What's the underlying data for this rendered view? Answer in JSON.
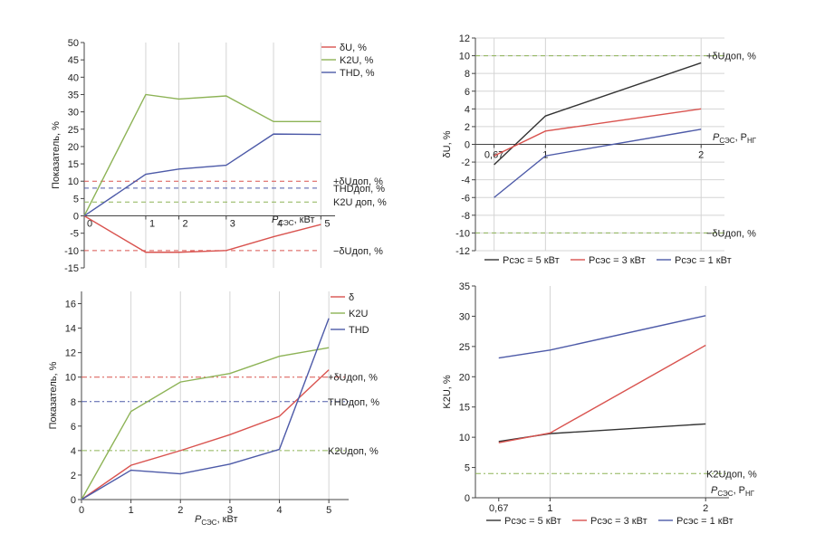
{
  "chart_data": [
    {
      "type": "line",
      "ylabel": "Показатель, %",
      "xlabel_main": "P",
      "xlabel_sub": "СЭС",
      "xlabel_tail": ", кВт",
      "x": [
        0,
        1.3,
        2,
        3,
        4,
        5
      ],
      "xticks": [
        "0",
        "1",
        "2",
        "3",
        "4",
        "5"
      ],
      "ylim": [
        -15,
        50
      ],
      "yticks": [
        "-15",
        "-10",
        "-5",
        "0",
        "5",
        "10",
        "15",
        "20",
        "25",
        "30",
        "35",
        "40",
        "45",
        "50"
      ],
      "grid": "vertical",
      "legend": "top-right",
      "series": [
        {
          "name": "δU, %",
          "color": "#d9534f",
          "values": [
            0,
            -10.5,
            -10.5,
            -10,
            -6,
            -2.5
          ]
        },
        {
          "name": "K2U, %",
          "color": "#8db356",
          "values": [
            0,
            35,
            33.7,
            34.6,
            27.2,
            27.2
          ]
        },
        {
          "name": "THD, %",
          "color": "#4d5aa8",
          "values": [
            0,
            12,
            13.5,
            14.6,
            23.6,
            23.5
          ]
        }
      ],
      "reference_lines": [
        {
          "label": "+δUдоп, %",
          "value": 10,
          "color": "#d9534f"
        },
        {
          "label": "THDдоп, %",
          "value": 8,
          "color": "#4d5aa8"
        },
        {
          "label": "K2U доп, %",
          "value": 4,
          "color": "#8db356"
        },
        {
          "label": "−δUдоп, %",
          "value": -10,
          "color": "#d9534f"
        }
      ]
    },
    {
      "type": "line",
      "ylabel": "δU, %",
      "xlabel_main": "P",
      "xlabel_sub": "СЭС",
      "xlabel_tail": ", P",
      "xlabel_sub2": "НГ",
      "x": [
        0.67,
        1,
        2
      ],
      "xticks": [
        "0,67",
        "1",
        "2"
      ],
      "ylim": [
        -12,
        12
      ],
      "yticks": [
        "-12",
        "-10",
        "-8",
        "-6",
        "-4",
        "-2",
        "0",
        "2",
        "4",
        "6",
        "8",
        "10",
        "12"
      ],
      "grid": "horizontal",
      "legend": "bottom",
      "series": [
        {
          "name": "Pсэс = 5 кВт",
          "color": "#333333",
          "values": [
            -2.3,
            3.2,
            9.2
          ]
        },
        {
          "name": "Pсэс = 3 кВт",
          "color": "#d9534f",
          "values": [
            -1.3,
            1.5,
            4.0
          ]
        },
        {
          "name": "Pсэс = 1 кВт",
          "color": "#4d5aa8",
          "values": [
            -6.0,
            -1.3,
            1.7
          ]
        }
      ],
      "reference_lines": [
        {
          "label": "+δUдоп, %",
          "value": 10,
          "color": "#8db356"
        },
        {
          "label": "−δUдоп, %",
          "value": -10,
          "color": "#8db356"
        }
      ]
    },
    {
      "type": "line",
      "ylabel": "Показатель, %",
      "xlabel_main": "P",
      "xlabel_sub": "СЭС",
      "xlabel_tail": ", кВт",
      "x": [
        0,
        1,
        2,
        3,
        4,
        5
      ],
      "xticks": [
        "0",
        "1",
        "2",
        "3",
        "4",
        "5"
      ],
      "ylim": [
        0,
        17
      ],
      "yticks": [
        "0",
        "2",
        "4",
        "6",
        "8",
        "10",
        "12",
        "14",
        "16"
      ],
      "grid": "vertical",
      "legend": "top-right",
      "series": [
        {
          "name": "δ",
          "color": "#d9534f",
          "values": [
            0,
            2.8,
            4.0,
            5.3,
            6.8,
            10.6
          ]
        },
        {
          "name": "K2U",
          "color": "#8db356",
          "values": [
            0,
            7.2,
            9.6,
            10.3,
            11.7,
            12.4
          ]
        },
        {
          "name": "THD",
          "color": "#4d5aa8",
          "values": [
            0,
            2.4,
            2.1,
            2.9,
            4.1,
            14.8
          ]
        }
      ],
      "reference_lines": [
        {
          "label": "+δUдоп, %",
          "value": 10,
          "color": "#d9534f"
        },
        {
          "label": "THDдоп, %",
          "value": 8,
          "color": "#4d5aa8"
        },
        {
          "label": "K2Uдоп, %",
          "value": 4,
          "color": "#8db356"
        }
      ]
    },
    {
      "type": "line",
      "ylabel": "K2U, %",
      "xlabel_main": "P",
      "xlabel_sub": "СЭС",
      "xlabel_tail": ", P",
      "xlabel_sub2": "НГ",
      "x": [
        0.67,
        1,
        2
      ],
      "xticks": [
        "0,67",
        "1",
        "2"
      ],
      "ylim": [
        0,
        35
      ],
      "yticks": [
        "0",
        "5",
        "10",
        "15",
        "20",
        "25",
        "30",
        "35"
      ],
      "grid": "vertical",
      "legend": "bottom",
      "series": [
        {
          "name": "Pсэс = 5 кВт",
          "color": "#333333",
          "values": [
            9.3,
            10.6,
            12.2
          ]
        },
        {
          "name": "Pсэс = 3 кВт",
          "color": "#d9534f",
          "values": [
            9.1,
            10.7,
            25.2
          ]
        },
        {
          "name": "Pсэс = 1 кВт",
          "color": "#4d5aa8",
          "values": [
            23.1,
            24.4,
            30.1
          ]
        }
      ],
      "reference_lines": [
        {
          "label": "K2Uдоп, %",
          "value": 4,
          "color": "#8db356"
        }
      ]
    }
  ]
}
